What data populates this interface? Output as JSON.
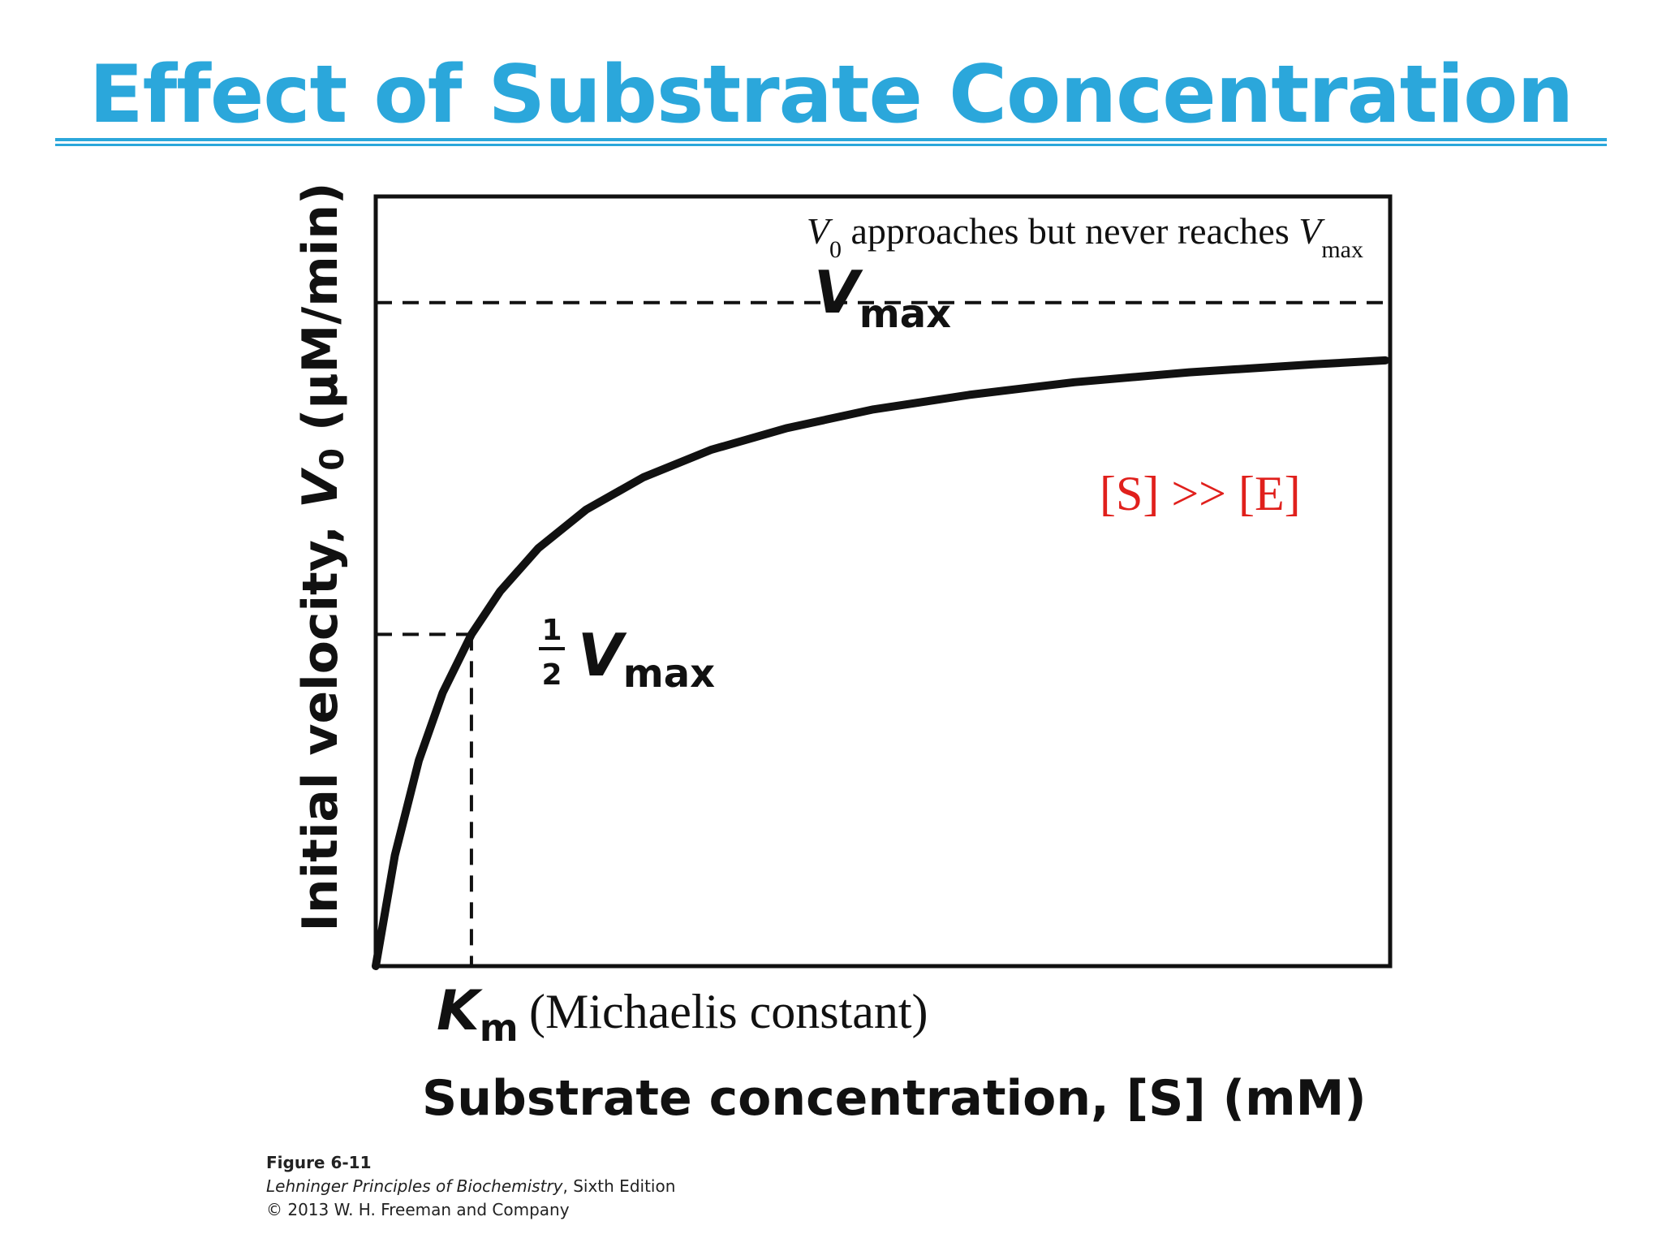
{
  "title": "Effect of Substrate Concentration",
  "accent_color": "#2ba7db",
  "chart_data": {
    "type": "line",
    "xlabel": "Substrate concentration, [S] (mM)",
    "ylabel": {
      "prefix": "Initial velocity, ",
      "symbol": "V",
      "subscript": "0",
      "units": " (µM/min)"
    },
    "vmax": 1,
    "km": 1,
    "xlim": [
      0,
      10.6
    ],
    "ylim": [
      0,
      1.16
    ],
    "curve_color": "#111111",
    "series": [
      {
        "x": [
          0,
          0.2,
          0.45,
          0.7,
          1.0,
          1.3,
          1.7,
          2.2,
          2.8,
          3.5,
          4.3,
          5.2,
          6.2,
          7.3,
          8.5,
          9.8,
          10.55
        ],
        "y": [
          0,
          0.167,
          0.31,
          0.412,
          0.5,
          0.565,
          0.63,
          0.688,
          0.737,
          0.778,
          0.811,
          0.839,
          0.861,
          0.88,
          0.895,
          0.907,
          0.913
        ]
      }
    ],
    "annotations": {
      "vmax_line": {
        "symbol": "V",
        "subscript": "max"
      },
      "half_vmax": {
        "numerator": "1",
        "denominator": "2",
        "symbol": "V",
        "subscript": "max"
      },
      "km_label": {
        "symbol": "K",
        "subscript": "m",
        "text": "(Michaelis constant)"
      },
      "note": {
        "v": "V",
        "v_sub": "0",
        "text": " approaches but never reaches ",
        "vmax": "V",
        "vmax_sub": "max"
      },
      "condition": {
        "text": "[S] >> [E]",
        "color": "#e0201c"
      }
    }
  },
  "caption": {
    "figure": "Figure 6-11",
    "book": "Lehninger Principles of Biochemistry",
    "edition": ", Sixth Edition",
    "copyright": "© 2013 W. H. Freeman and Company"
  }
}
